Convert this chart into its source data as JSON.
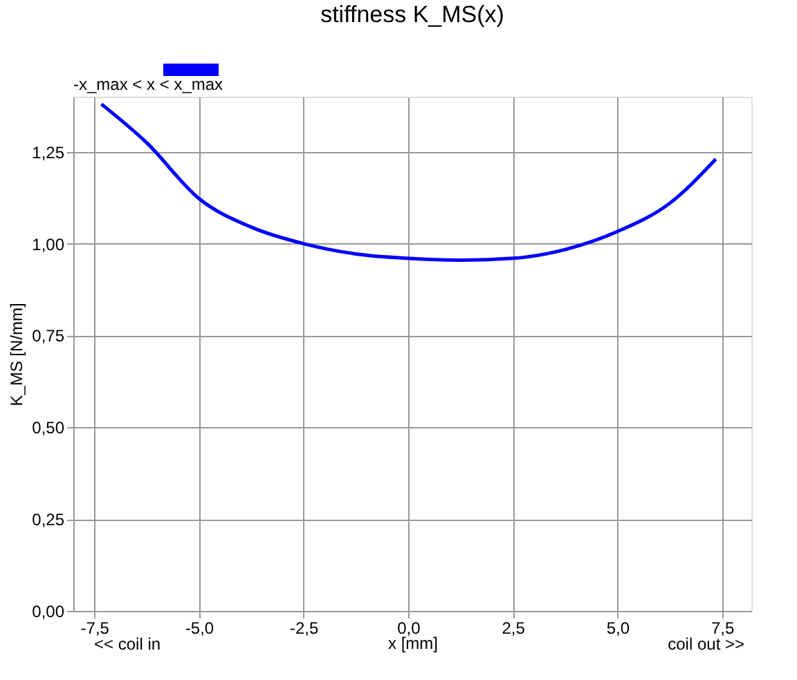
{
  "chart_data": {
    "type": "line",
    "title": "stiffness K_MS(x)",
    "xlabel": "x [mm]",
    "ylabel": "K_MS [N/mm]",
    "x": [
      -7.33,
      -6.25,
      -5,
      -3.75,
      -2.5,
      -1.25,
      0,
      1.25,
      2.5,
      3.75,
      5,
      6.25,
      7.35
    ],
    "series": [
      {
        "name": "-x_max < x < x_max",
        "color": "#0000ff",
        "values": [
          1.38,
          1.275,
          1.123,
          1.045,
          1.0,
          0.972,
          0.96,
          0.955,
          0.96,
          0.984,
          1.033,
          1.11,
          1.23
        ]
      }
    ],
    "xlim": [
      -8,
      8.2
    ],
    "ylim": [
      0,
      1.4
    ],
    "xticks": [
      {
        "value": -7.5,
        "label": "-7,5"
      },
      {
        "value": -5,
        "label": "-5,0"
      },
      {
        "value": -2.5,
        "label": "-2,5"
      },
      {
        "value": 0,
        "label": "0,0"
      },
      {
        "value": 2.5,
        "label": "2,5"
      },
      {
        "value": 5,
        "label": "5,0"
      },
      {
        "value": 7.5,
        "label": "7,5"
      }
    ],
    "yticks": [
      {
        "value": 0,
        "label": "0,00"
      },
      {
        "value": 0.25,
        "label": "0,25"
      },
      {
        "value": 0.5,
        "label": "0,50"
      },
      {
        "value": 0.75,
        "label": "0,75"
      },
      {
        "value": 1.0,
        "label": "1,00"
      },
      {
        "value": 1.25,
        "label": "1,25"
      }
    ],
    "annotations": [
      "<< coil in",
      "coil out >>"
    ],
    "grid": true,
    "legend": "top left",
    "marker": "none",
    "line_style": "solid"
  }
}
